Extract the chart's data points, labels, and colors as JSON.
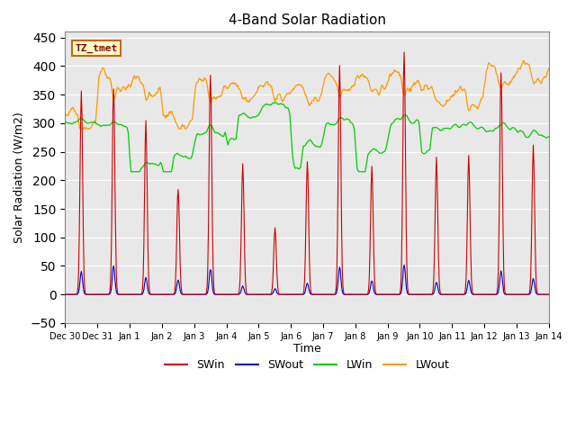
{
  "title": "4-Band Solar Radiation",
  "xlabel": "Time",
  "ylabel": "Solar Radiation (W/m2)",
  "ylim": [
    -50,
    460
  ],
  "yticks": [
    -50,
    0,
    50,
    100,
    150,
    200,
    250,
    300,
    350,
    400,
    450
  ],
  "annotation_text": "TZ_tmet",
  "annotation_bbox_facecolor": "#ffffcc",
  "annotation_bbox_edgecolor": "#cc6600",
  "annotation_text_color": "#8b0000",
  "colors": {
    "SWin": "#cc0000",
    "SWout": "#0000cc",
    "LWin": "#00cc00",
    "LWout": "#ff9900"
  },
  "bg_color": "#e8e8e8",
  "n_days": 15,
  "seed": 42,
  "tick_labels": [
    "Dec 30",
    "Dec 31",
    "Jan 1",
    "Jan 2",
    "Jan 3",
    "Jan 4",
    "Jan 5",
    "Jan 6",
    "Jan 7",
    "Jan 8",
    "Jan 9",
    "Jan 10",
    "Jan 11",
    "Jan 12",
    "Jan 13",
    "Jan 14"
  ],
  "SWin_peaks": [
    360,
    360,
    300,
    185,
    390,
    230,
    115,
    230,
    400,
    225,
    430,
    235,
    240,
    390,
    260
  ],
  "SWout_peaks": [
    40,
    50,
    30,
    25,
    45,
    15,
    10,
    20,
    48,
    25,
    52,
    22,
    25,
    42,
    28
  ],
  "LWout_base": [
    305,
    370,
    365,
    305,
    360,
    355,
    355,
    355,
    370,
    370,
    375,
    350,
    345,
    385,
    390
  ],
  "LWin_base": [
    300,
    295,
    225,
    240,
    285,
    310,
    330,
    260,
    300,
    245,
    305,
    285,
    295,
    290,
    280
  ]
}
